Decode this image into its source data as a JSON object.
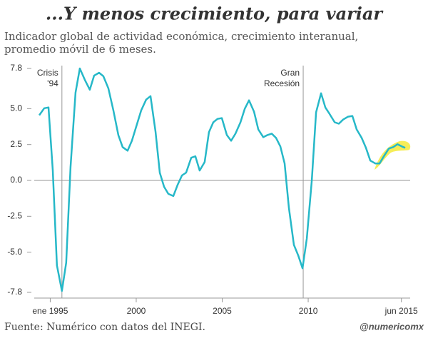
{
  "chart_data": {
    "type": "line",
    "title": "...Y menos crecimiento, para variar",
    "subtitle": [
      "Indicador global de actividad económica, crecimiento interanual,",
      "promedio móvil de 6 meses."
    ],
    "source": "Fuente: Numérico con datos del INEGI.",
    "credit": "@numericomx",
    "color": "#26b8c8",
    "xlim": [
      1994.07,
      2015.93
    ],
    "ylim": [
      -7.8,
      7.8
    ],
    "xticks": [
      {
        "value": 1995,
        "label": "ene 1995"
      },
      2000,
      2005,
      2010,
      {
        "value": 2015.42,
        "label": "jun 2015"
      }
    ],
    "yticks": [
      7.8,
      {
        "value": 5,
        "label": "5.0"
      },
      2.5,
      {
        "value": 0,
        "label": "0.0"
      },
      -2.5,
      {
        "value": -5,
        "label": "-5.0"
      },
      -7.8
    ],
    "annotations": [
      {
        "x": 1995.68,
        "label": [
          "Crisis",
          "'94"
        ]
      },
      {
        "x": 2009.71,
        "label": [
          "Gran",
          "Recesión"
        ]
      }
    ],
    "x": [
      1994.36,
      1994.65,
      1994.9,
      1995.15,
      1995.39,
      1995.68,
      1995.93,
      1996.18,
      1996.47,
      1996.72,
      1997.01,
      1997.3,
      1997.55,
      1997.84,
      1998.09,
      1998.38,
      1998.67,
      1998.96,
      1999.21,
      1999.5,
      1999.75,
      2000.04,
      2000.29,
      2000.58,
      2000.83,
      2001.12,
      2001.37,
      2001.62,
      2001.87,
      2002.16,
      2002.41,
      2002.66,
      2002.9,
      2003.2,
      2003.44,
      2003.69,
      2003.98,
      2004.23,
      2004.48,
      2004.73,
      2004.98,
      2005.27,
      2005.52,
      2005.77,
      2006.06,
      2006.31,
      2006.56,
      2006.85,
      2007.1,
      2007.39,
      2007.63,
      2007.88,
      2008.13,
      2008.38,
      2008.63,
      2008.88,
      2009.17,
      2009.42,
      2009.67,
      2009.92,
      2010.21,
      2010.46,
      2010.75,
      2011.0,
      2011.24,
      2011.54,
      2011.78,
      2012.03,
      2012.32,
      2012.57,
      2012.82,
      2013.11,
      2013.36,
      2013.61,
      2013.9,
      2014.15,
      2014.4,
      2014.69,
      2014.94,
      2015.19,
      2015.44,
      2015.64
    ],
    "values": [
      4.54,
      5.03,
      5.08,
      0.69,
      -5.92,
      -7.7,
      -5.73,
      0.94,
      6.12,
      7.8,
      7.01,
      6.32,
      7.3,
      7.5,
      7.26,
      6.42,
      4.89,
      3.16,
      2.32,
      2.07,
      2.76,
      3.9,
      4.89,
      5.63,
      5.87,
      3.41,
      0.54,
      -0.44,
      -0.94,
      -1.09,
      -0.3,
      0.35,
      0.54,
      1.58,
      1.68,
      0.69,
      1.28,
      3.36,
      4.05,
      4.29,
      4.34,
      3.16,
      2.76,
      3.26,
      4.05,
      4.99,
      5.58,
      4.79,
      3.55,
      3.01,
      3.16,
      3.26,
      2.96,
      2.37,
      1.18,
      -1.92,
      -4.49,
      -5.23,
      -6.12,
      -4.05,
      0.0,
      4.74,
      6.07,
      5.08,
      4.64,
      4.05,
      3.95,
      4.24,
      4.44,
      4.49,
      3.55,
      2.96,
      2.27,
      1.38,
      1.18,
      1.18,
      1.68,
      2.22,
      2.32,
      2.52,
      2.37,
      2.27
    ]
  }
}
